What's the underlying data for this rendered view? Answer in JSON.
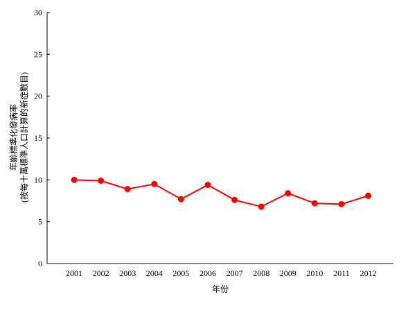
{
  "chart_data": {
    "type": "line",
    "title": "",
    "xlabel": "年份",
    "ylabel": [
      "年齡標準化發病率",
      "(按每十萬標準人口計算的新症數目)"
    ],
    "categories": [
      "2001",
      "2002",
      "2003",
      "2004",
      "2005",
      "2006",
      "2007",
      "2008",
      "2009",
      "2010",
      "2011",
      "2012"
    ],
    "series": [
      {
        "values": [
          10.0,
          9.9,
          8.9,
          9.5,
          7.7,
          9.4,
          7.6,
          6.8,
          8.4,
          7.2,
          7.1,
          8.1
        ]
      }
    ],
    "ylim": [
      0,
      30
    ],
    "yticks": [
      "0",
      "5",
      "10",
      "15",
      "20",
      "25",
      "30"
    ],
    "grid": false,
    "legend": "none",
    "colors": {
      "series": "#ff0000",
      "axis": "#000000"
    }
  }
}
